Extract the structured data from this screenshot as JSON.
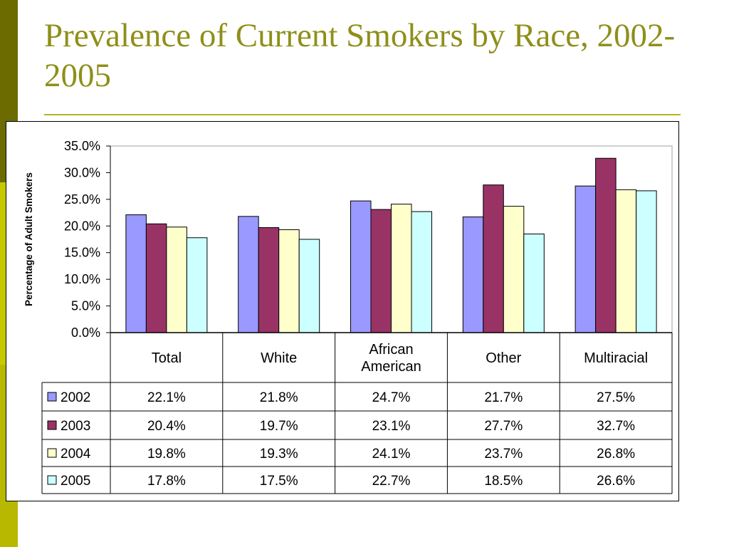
{
  "slide": {
    "title": "Prevalence of Current Smokers by Race, 2002-2005"
  },
  "colors": {
    "stripe_dark": "#6b6b00",
    "stripe_mid": "#c8c800",
    "title": "#8f8f1a",
    "rule": "#b4b41e"
  },
  "chart_data": {
    "type": "bar",
    "title": "",
    "xlabel": "",
    "ylabel": "Percentage of Adult Smokers",
    "ylim": [
      0,
      35
    ],
    "yticks": [
      "0.0%",
      "5.0%",
      "10.0%",
      "15.0%",
      "20.0%",
      "25.0%",
      "30.0%",
      "35.0%"
    ],
    "categories": [
      "Total",
      "White",
      "African American",
      "Other",
      "Multiracial"
    ],
    "category_lines": [
      [
        "Total"
      ],
      [
        "White"
      ],
      [
        "African",
        "American"
      ],
      [
        "Other"
      ],
      [
        "Multiracial"
      ]
    ],
    "grid": false,
    "legend": "data-table",
    "series": [
      {
        "name": "2002",
        "color": "#9999ff",
        "values": [
          22.1,
          21.8,
          24.7,
          21.7,
          27.5
        ],
        "labels": [
          "22.1%",
          "21.8%",
          "24.7%",
          "21.7%",
          "27.5%"
        ]
      },
      {
        "name": "2003",
        "color": "#993366",
        "values": [
          20.4,
          19.7,
          23.1,
          27.7,
          32.7
        ],
        "labels": [
          "20.4%",
          "19.7%",
          "23.1%",
          "27.7%",
          "32.7%"
        ]
      },
      {
        "name": "2004",
        "color": "#ffffcc",
        "values": [
          19.8,
          19.3,
          24.1,
          23.7,
          26.8
        ],
        "labels": [
          "19.8%",
          "19.3%",
          "24.1%",
          "23.7%",
          "26.8%"
        ]
      },
      {
        "name": "2005",
        "color": "#ccffff",
        "values": [
          17.8,
          17.5,
          22.7,
          18.5,
          26.6
        ],
        "labels": [
          "17.8%",
          "17.5%",
          "22.7%",
          "18.5%",
          "26.6%"
        ]
      }
    ]
  }
}
